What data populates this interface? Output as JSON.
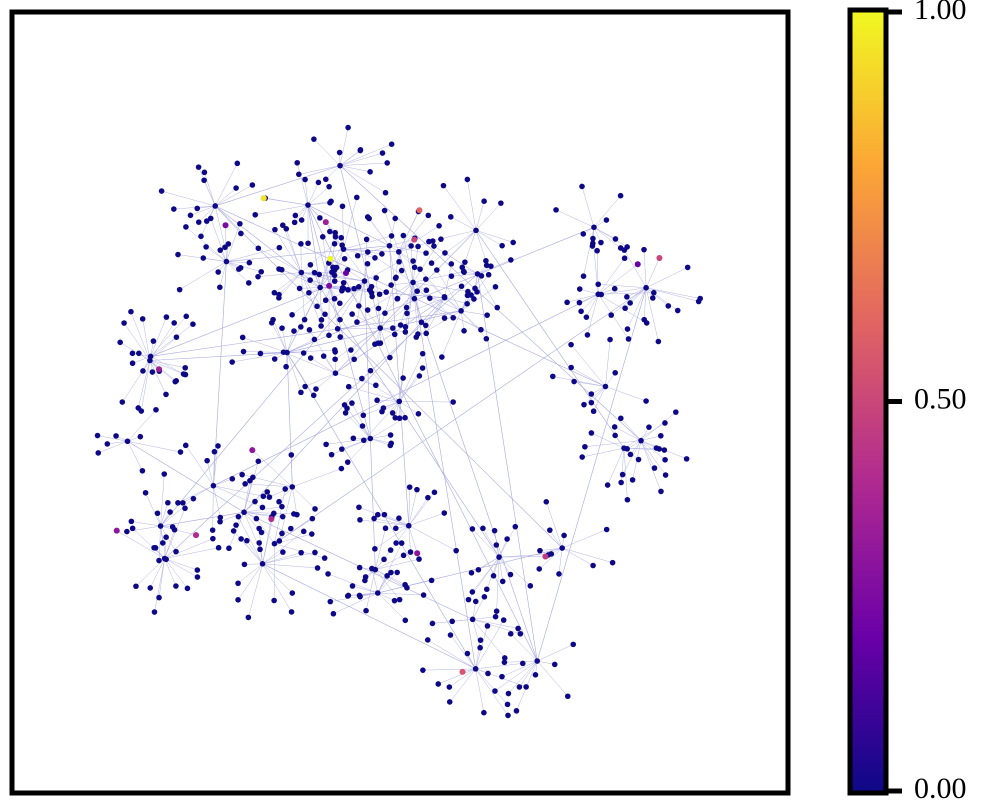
{
  "chart_data": {
    "type": "network",
    "colormap": [
      "#0d0887",
      "#6a00a8",
      "#b12a90",
      "#e16462",
      "#fca636",
      "#f0f921"
    ],
    "clim": [
      0,
      1
    ],
    "cticks": [
      {
        "value": 0,
        "label": "0.00"
      },
      {
        "value": 0.5,
        "label": "0.50"
      },
      {
        "value": 1,
        "label": "1.00"
      }
    ],
    "node_values": [
      1.0,
      0.95,
      0.6,
      0.55,
      0.5,
      0.5,
      0.45,
      0.4,
      0.4,
      0.35,
      0.35,
      0.3,
      0.3,
      0.3,
      0.25,
      0.25,
      0.2,
      0.2
    ]
  }
}
